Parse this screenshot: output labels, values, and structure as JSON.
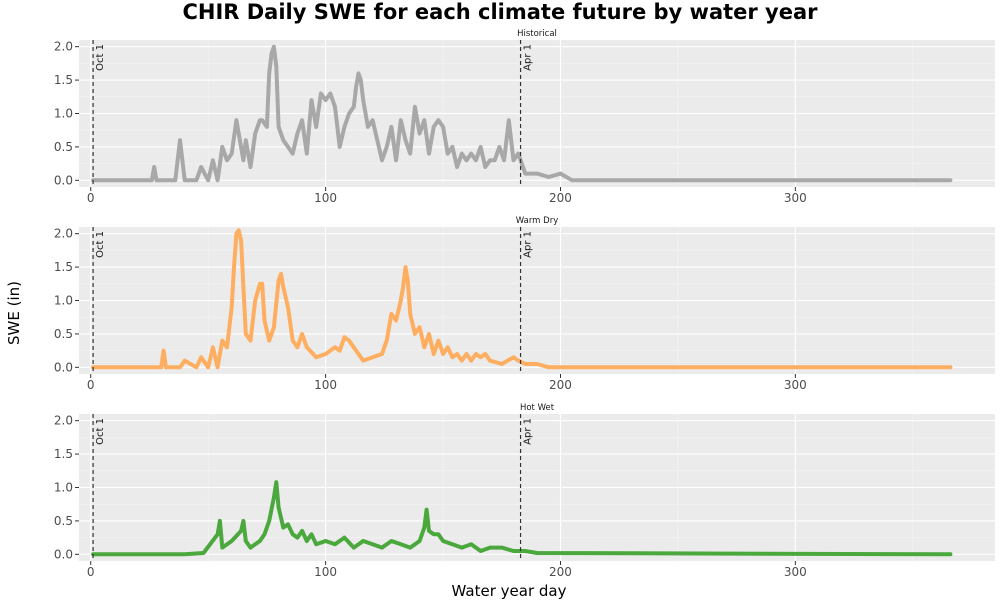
{
  "chart_data": {
    "type": "line",
    "title": "CHIR Daily SWE for each climate future by water year",
    "xlabel": "Water year day",
    "ylabel": "SWE (in)",
    "xlim": [
      -5,
      385
    ],
    "ylim": [
      -0.1,
      2.1
    ],
    "x_ticks": [
      0,
      100,
      200,
      300
    ],
    "y_ticks": [
      0.0,
      0.5,
      1.0,
      1.5,
      2.0
    ],
    "x_tick_labels": [
      "0",
      "100",
      "200",
      "300"
    ],
    "y_tick_labels": [
      "0.0",
      "0.5",
      "1.0",
      "1.5",
      "2.0"
    ],
    "grid": true,
    "legend": "none",
    "reference_lines": [
      {
        "x": 1,
        "label": "Oct 1"
      },
      {
        "x": 183,
        "label": "Apr 1"
      }
    ],
    "panels": [
      {
        "name": "Historical",
        "color": "#a8a8a8",
        "x": [
          1,
          20,
          26,
          27,
          28,
          36,
          38,
          40,
          45,
          47,
          50,
          52,
          54,
          56,
          58,
          60,
          62,
          63,
          65,
          66,
          68,
          70,
          72,
          73,
          75,
          76,
          77,
          78,
          79,
          80,
          82,
          84,
          86,
          88,
          90,
          92,
          94,
          96,
          98,
          100,
          102,
          104,
          106,
          108,
          110,
          112,
          113,
          114,
          115,
          116,
          118,
          120,
          122,
          124,
          126,
          128,
          130,
          132,
          134,
          136,
          138,
          140,
          142,
          144,
          146,
          148,
          150,
          152,
          154,
          156,
          158,
          160,
          162,
          164,
          166,
          168,
          170,
          172,
          174,
          176,
          178,
          180,
          182,
          185,
          190,
          195,
          200,
          205,
          366
        ],
        "values": [
          0,
          0,
          0,
          0.2,
          0,
          0,
          0.6,
          0,
          0,
          0.2,
          0,
          0.3,
          0,
          0.5,
          0.3,
          0.4,
          0.9,
          0.7,
          0.3,
          0.6,
          0.2,
          0.7,
          0.9,
          0.9,
          0.8,
          1.6,
          1.9,
          2.0,
          1.7,
          0.8,
          0.6,
          0.5,
          0.4,
          0.7,
          0.9,
          0.4,
          1.2,
          0.8,
          1.3,
          1.2,
          1.3,
          1.1,
          0.5,
          0.8,
          1.0,
          1.1,
          1.4,
          1.6,
          1.5,
          1.2,
          0.8,
          0.9,
          0.6,
          0.3,
          0.5,
          0.8,
          0.3,
          0.9,
          0.6,
          0.4,
          1.1,
          0.7,
          0.9,
          0.4,
          0.8,
          0.9,
          0.8,
          0.4,
          0.5,
          0.2,
          0.4,
          0.3,
          0.4,
          0.3,
          0.5,
          0.2,
          0.3,
          0.3,
          0.5,
          0.3,
          0.9,
          0.3,
          0.4,
          0.1,
          0.1,
          0.05,
          0.1,
          0,
          0
        ]
      },
      {
        "name": "Warm Dry",
        "color": "#fdae61",
        "x": [
          1,
          28,
          30,
          31,
          32,
          38,
          40,
          45,
          47,
          50,
          52,
          54,
          56,
          58,
          60,
          61,
          62,
          63,
          64,
          65,
          66,
          68,
          70,
          72,
          73,
          74,
          76,
          78,
          80,
          81,
          82,
          84,
          86,
          88,
          90,
          92,
          96,
          100,
          104,
          106,
          108,
          110,
          112,
          116,
          120,
          124,
          126,
          128,
          130,
          132,
          133,
          134,
          135,
          136,
          138,
          140,
          142,
          144,
          146,
          148,
          150,
          152,
          154,
          156,
          158,
          160,
          162,
          164,
          166,
          168,
          170,
          175,
          180,
          182,
          185,
          190,
          195,
          366
        ],
        "values": [
          0,
          0,
          0,
          0.25,
          0,
          0,
          0.1,
          0,
          0.15,
          0,
          0.3,
          0,
          0.4,
          0.3,
          0.9,
          1.5,
          2.0,
          2.05,
          1.9,
          1.2,
          0.5,
          0.4,
          1.0,
          1.25,
          1.25,
          0.7,
          0.4,
          0.6,
          1.3,
          1.4,
          1.2,
          0.9,
          0.4,
          0.3,
          0.5,
          0.3,
          0.15,
          0.2,
          0.3,
          0.25,
          0.45,
          0.4,
          0.3,
          0.1,
          0.15,
          0.2,
          0.4,
          0.8,
          0.7,
          1.0,
          1.2,
          1.5,
          1.3,
          0.8,
          0.5,
          0.6,
          0.3,
          0.5,
          0.2,
          0.4,
          0.2,
          0.3,
          0.15,
          0.2,
          0.1,
          0.2,
          0.1,
          0.2,
          0.15,
          0.2,
          0.1,
          0.05,
          0.15,
          0.1,
          0.05,
          0.05,
          0,
          0
        ]
      },
      {
        "name": "Hot Wet",
        "color": "#4aa83d",
        "x": [
          1,
          40,
          48,
          54,
          55,
          56,
          60,
          64,
          65,
          66,
          68,
          70,
          72,
          74,
          76,
          78,
          79,
          80,
          82,
          84,
          86,
          88,
          90,
          92,
          94,
          96,
          100,
          104,
          108,
          112,
          116,
          120,
          124,
          128,
          132,
          136,
          140,
          142,
          143,
          144,
          146,
          148,
          150,
          154,
          158,
          162,
          166,
          170,
          175,
          180,
          185,
          190,
          366
        ],
        "values": [
          0,
          0,
          0.02,
          0.3,
          0.5,
          0.1,
          0.2,
          0.35,
          0.5,
          0.2,
          0.1,
          0.15,
          0.2,
          0.3,
          0.5,
          0.85,
          1.08,
          0.7,
          0.4,
          0.45,
          0.3,
          0.25,
          0.35,
          0.2,
          0.3,
          0.15,
          0.2,
          0.15,
          0.25,
          0.1,
          0.2,
          0.15,
          0.1,
          0.2,
          0.15,
          0.1,
          0.2,
          0.4,
          0.67,
          0.35,
          0.3,
          0.3,
          0.2,
          0.15,
          0.1,
          0.15,
          0.05,
          0.1,
          0.1,
          0.05,
          0.05,
          0.02,
          0
        ]
      }
    ]
  }
}
